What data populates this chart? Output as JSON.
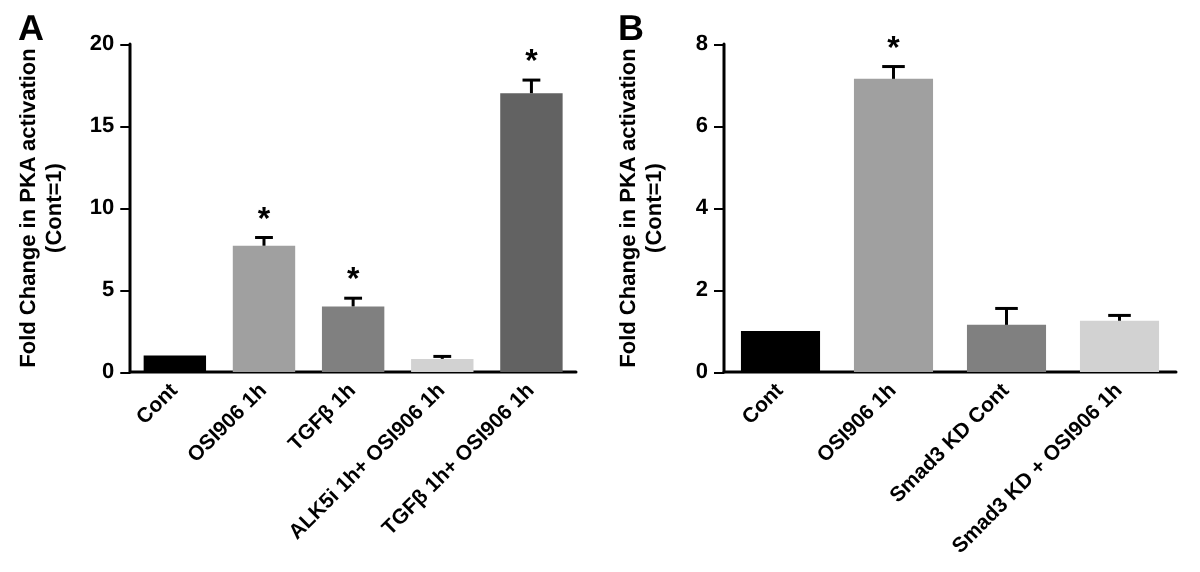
{
  "chart_data": [
    {
      "type": "bar",
      "title": "A",
      "ylabel": "Fold Change in PKA activation\n(Cont=1)",
      "categories": [
        "Cont",
        "OSI906 1h",
        "TGFβ 1h",
        "ALK5i 1h+ OSI906 1h",
        "TGFβ 1h+ OSI906 1h"
      ],
      "values": [
        1.0,
        7.7,
        4.0,
        0.8,
        17.0
      ],
      "colors": [
        "#000000",
        "#a0a0a0",
        "#808080",
        "#d2d2d2",
        "#626262"
      ],
      "errors": [
        null,
        [
          7.7,
          8.2
        ],
        [
          4.0,
          4.5
        ],
        [
          0.8,
          0.95
        ],
        [
          17.0,
          17.8
        ]
      ],
      "ylim": [
        0,
        20
      ],
      "yticks": [
        0,
        5,
        10,
        15,
        20
      ],
      "grid": false,
      "annotations": [
        {
          "text": "*",
          "x": "OSI906 1h",
          "y": 8.2
        },
        {
          "text": "*",
          "x": "TGFβ 1h",
          "y": 4.5
        },
        {
          "text": "*",
          "x": "TGFβ 1h+ OSI906 1h",
          "y": 17.8
        }
      ]
    },
    {
      "type": "bar",
      "title": "B",
      "ylabel": "Fold Change in PKA activation\n(Cont=1)",
      "categories": [
        "Cont",
        "OSI906 1h",
        "Smad3 KD Cont",
        "Smad3 KD + OSI906 1h"
      ],
      "values": [
        1.0,
        7.15,
        1.15,
        1.25
      ],
      "colors": [
        "#000000",
        "#a0a0a0",
        "#808080",
        "#d2d2d2"
      ],
      "errors": [
        null,
        [
          7.15,
          7.45
        ],
        [
          1.15,
          1.55
        ],
        [
          1.25,
          1.38
        ]
      ],
      "ylim": [
        0,
        8
      ],
      "yticks": [
        0,
        2,
        4,
        6,
        8
      ],
      "grid": false,
      "annotations": [
        {
          "text": "*",
          "x": "OSI906 1h",
          "y": 7.45
        }
      ]
    }
  ]
}
